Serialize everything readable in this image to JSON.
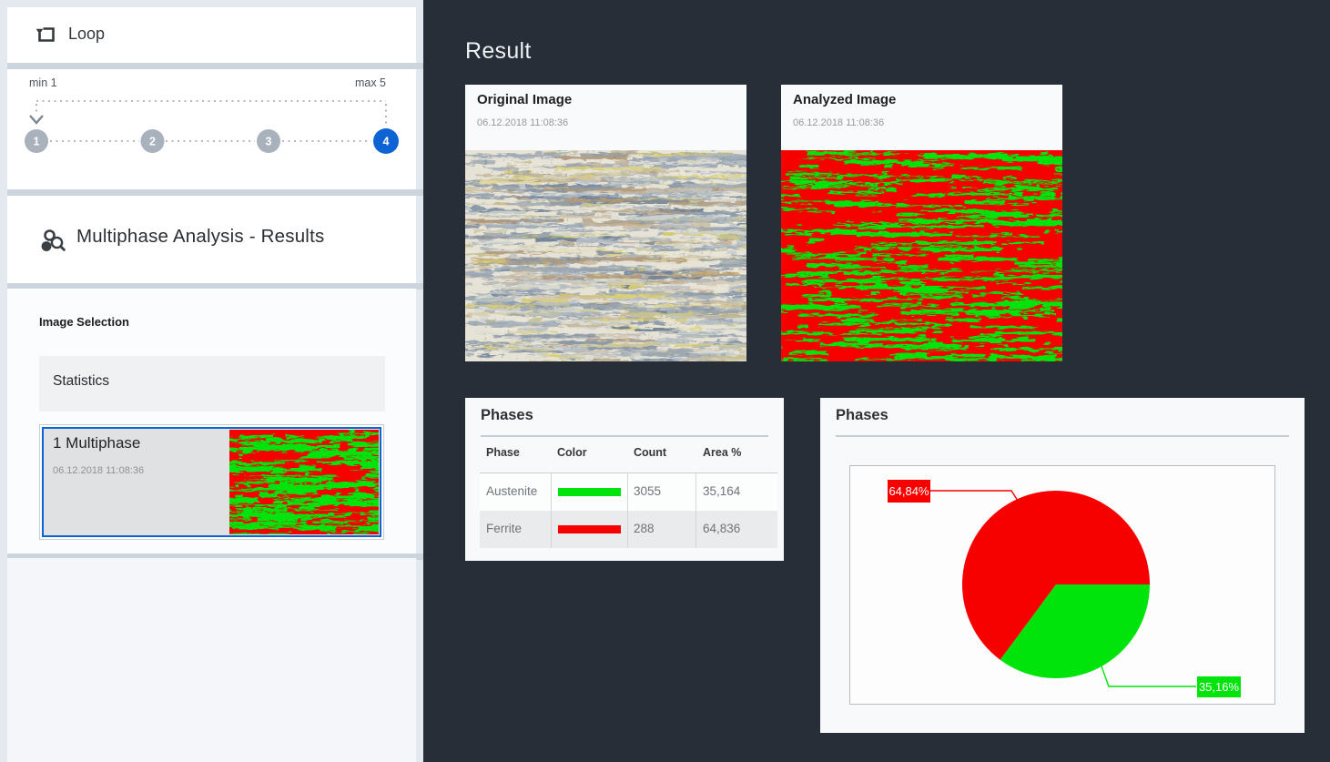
{
  "colors": {
    "accent_blue": "#0e63d4",
    "phase_green": "#00e40b",
    "phase_red": "#f70000",
    "dark_background": "#272e37"
  },
  "icons": {
    "loop": "loop-icon",
    "analysis": "multiphase-analysis-icon"
  },
  "sidebar": {
    "loop": {
      "title": "Loop"
    },
    "stepper": {
      "min_label": "min 1",
      "max_label": "max 5",
      "steps": [
        "1",
        "2",
        "3",
        "4"
      ],
      "active_step": "4"
    },
    "title": "Multiphase Analysis - Results",
    "image_selection": {
      "label": "Image Selection",
      "items": [
        {
          "title": "Statistics",
          "selected": false
        },
        {
          "title": "1 Multiphase",
          "timestamp": "06.12.2018 11:08:36",
          "selected": true
        }
      ]
    }
  },
  "main": {
    "title": "Result",
    "images": [
      {
        "title": "Original Image",
        "timestamp": "06.12.2018 11:08:36"
      },
      {
        "title": "Analyzed Image",
        "timestamp": "06.12.2018 11:08:36"
      }
    ],
    "phases_table": {
      "title": "Phases",
      "columns": [
        "Phase",
        "Color",
        "Count",
        "Area %"
      ],
      "rows": [
        {
          "phase": "Austenite",
          "color": "#00e40b",
          "count": "3055",
          "area": "35,164"
        },
        {
          "phase": "Ferrite",
          "color": "#f70000",
          "count": "288",
          "area": "64,836"
        }
      ]
    }
  },
  "chart_data": {
    "type": "pie",
    "title": "Phases",
    "slices": [
      {
        "name": "Austenite",
        "value": 35.16,
        "label": "35,16%",
        "color": "#00e40b"
      },
      {
        "name": "Ferrite",
        "value": 64.84,
        "label": "64,84%",
        "color": "#f70000"
      }
    ],
    "start_angle_deg": 0,
    "direction": "clockwise",
    "legend_position": "none",
    "labels_as_callouts": true
  }
}
